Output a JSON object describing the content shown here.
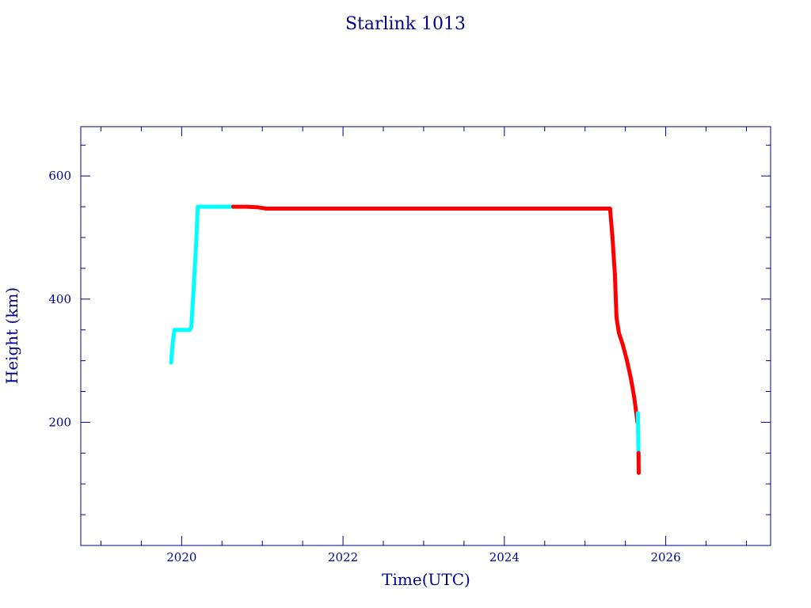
{
  "chart_data": {
    "type": "scatter",
    "title": "Starlink 1013",
    "xlabel": "Time(UTC)",
    "ylabel": "Height (km)",
    "xlim": [
      2018.75,
      2027.3
    ],
    "ylim": [
      0,
      680
    ],
    "x_ticks_major": [
      2020,
      2022,
      2024,
      2026
    ],
    "x_ticks_minor_step": 0.5,
    "y_ticks_major": [
      200,
      400,
      600
    ],
    "y_ticks_minor_step": 50,
    "grid": false,
    "colors": {
      "axis": "#00008b",
      "phase_a": "#00ffff",
      "phase_b": "#ff0000"
    },
    "series": [
      {
        "color": "#00ffff",
        "x": [
          2019.87,
          2019.89,
          2019.91,
          2019.95,
          2020.0,
          2020.05,
          2020.1,
          2020.12,
          2020.15,
          2020.18,
          2020.2,
          2020.25,
          2020.3,
          2020.4,
          2020.5,
          2020.6,
          2020.64
        ],
        "y": [
          297,
          330,
          350,
          350,
          350,
          350,
          350,
          355,
          420,
          490,
          550,
          550,
          550,
          550,
          550,
          550,
          550
        ]
      },
      {
        "color": "#ff0000",
        "x": [
          2020.64,
          2020.8,
          2020.95,
          2021.05,
          2021.5,
          2022.0,
          2022.5,
          2023.0,
          2023.5,
          2024.0,
          2024.5,
          2025.0,
          2025.2,
          2025.31,
          2025.34,
          2025.37,
          2025.39,
          2025.42,
          2025.47,
          2025.52,
          2025.57,
          2025.61,
          2025.635,
          2025.65
        ],
        "y": [
          550,
          550,
          549,
          547,
          547,
          547,
          547,
          547,
          547,
          547,
          547,
          547,
          547,
          547,
          500,
          440,
          370,
          345,
          325,
          300,
          270,
          240,
          215,
          200
        ]
      },
      {
        "color": "#00ffff",
        "x": [
          2025.655,
          2025.658,
          2025.66,
          2025.662
        ],
        "y": [
          215,
          185,
          165,
          145
        ]
      },
      {
        "color": "#ff0000",
        "x": [
          2025.663,
          2025.665
        ],
        "y": [
          150,
          118
        ]
      }
    ]
  }
}
